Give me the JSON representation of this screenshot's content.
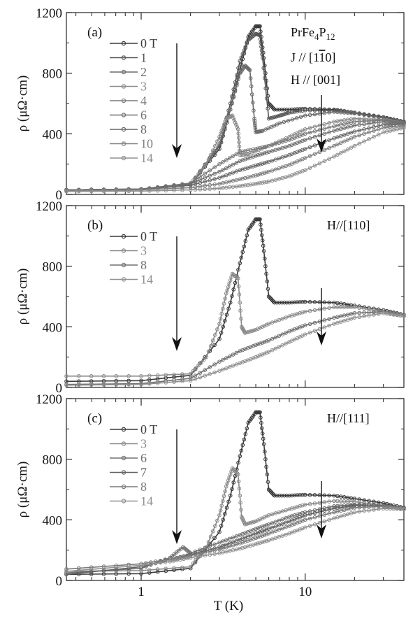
{
  "chart_data": [
    {
      "type": "line",
      "panel_label": "(a)",
      "xscale": "log",
      "xlim": [
        0.35,
        40
      ],
      "ylim": [
        0,
        1200
      ],
      "yticks": [
        0,
        400,
        800,
        1200
      ],
      "xticks": [
        1,
        10
      ],
      "xlabel": "",
      "ylabel": "ρ (μΩ·cm)",
      "annotation": {
        "compound": "PrFe",
        "sub1": "4",
        "mid": "P",
        "sub2": "12",
        "line2": "J // [1",
        "line2_bar": "1",
        "line2_end": "0]",
        "line3": "H // [001]"
      },
      "series": [
        {
          "name": "0 T",
          "color": "#3a3a3a",
          "x": [
            0.35,
            1,
            2,
            3,
            3.5,
            4,
            4.5,
            5,
            5.3,
            5.6,
            6,
            6.5,
            8,
            10,
            15,
            20,
            30,
            40
          ],
          "y": [
            30,
            35,
            65,
            300,
            560,
            820,
            1040,
            1110,
            1110,
            900,
            600,
            560,
            560,
            565,
            560,
            540,
            510,
            480
          ]
        },
        {
          "name": "1",
          "color": "#555555",
          "x": [
            0.35,
            1,
            2,
            3,
            3.5,
            4,
            4.5,
            5,
            5.3,
            5.5,
            6,
            7,
            8,
            10,
            15,
            20,
            30,
            40
          ],
          "y": [
            30,
            35,
            65,
            320,
            600,
            880,
            1020,
            1060,
            1050,
            900,
            500,
            520,
            540,
            555,
            555,
            540,
            505,
            475
          ]
        },
        {
          "name": "2",
          "color": "#6a6a6a",
          "x": [
            0.35,
            1,
            2,
            3,
            3.5,
            4,
            4.3,
            4.6,
            4.9,
            5,
            5.5,
            7,
            10,
            15,
            20,
            30,
            40
          ],
          "y": [
            30,
            35,
            65,
            330,
            560,
            800,
            850,
            820,
            500,
            410,
            420,
            470,
            520,
            545,
            535,
            505,
            475
          ]
        },
        {
          "name": "3",
          "color": "#8a8a8a",
          "x": [
            0.35,
            1,
            2,
            2.5,
            3,
            3.3,
            3.6,
            3.9,
            4,
            4.5,
            6,
            8,
            10,
            15,
            20,
            30,
            40
          ],
          "y": [
            30,
            35,
            70,
            200,
            380,
            500,
            520,
            430,
            260,
            265,
            320,
            380,
            430,
            480,
            500,
            495,
            470
          ]
        },
        {
          "name": "4",
          "color": "#7a7a7a",
          "x": [
            0.35,
            1,
            2,
            3,
            4,
            5,
            6,
            8,
            10,
            15,
            20,
            30,
            40
          ],
          "y": [
            30,
            35,
            75,
            200,
            280,
            300,
            320,
            360,
            400,
            450,
            480,
            490,
            470
          ]
        },
        {
          "name": "6",
          "color": "#707070",
          "x": [
            0.35,
            1,
            2,
            3,
            4,
            5,
            6,
            8,
            10,
            15,
            20,
            30,
            40
          ],
          "y": [
            30,
            35,
            70,
            150,
            220,
            255,
            280,
            320,
            360,
            420,
            455,
            480,
            470
          ]
        },
        {
          "name": "8",
          "color": "#686868",
          "x": [
            0.35,
            1,
            2,
            3,
            4,
            5,
            6,
            8,
            10,
            15,
            20,
            30,
            40
          ],
          "y": [
            28,
            33,
            60,
            110,
            160,
            190,
            215,
            260,
            300,
            370,
            415,
            460,
            460
          ]
        },
        {
          "name": "10",
          "color": "#808080",
          "x": [
            0.35,
            1,
            2,
            3,
            4,
            5,
            6,
            8,
            10,
            15,
            20,
            30,
            40
          ],
          "y": [
            25,
            30,
            45,
            70,
            100,
            125,
            150,
            195,
            240,
            320,
            380,
            440,
            455
          ]
        },
        {
          "name": "14",
          "color": "#909090",
          "x": [
            0.35,
            1,
            2,
            3,
            4,
            5,
            6,
            8,
            10,
            15,
            20,
            30,
            40
          ],
          "y": [
            20,
            22,
            30,
            40,
            55,
            70,
            85,
            120,
            160,
            250,
            320,
            410,
            440
          ]
        }
      ]
    },
    {
      "type": "line",
      "panel_label": "(b)",
      "xscale": "log",
      "xlim": [
        0.35,
        40
      ],
      "ylim": [
        0,
        1200
      ],
      "yticks": [
        0,
        400,
        800,
        1200
      ],
      "xticks": [
        1,
        10
      ],
      "xlabel": "",
      "ylabel": "ρ (μΩ·cm)",
      "annotation": {
        "line1": "H//[110]"
      },
      "series": [
        {
          "name": "0 T",
          "color": "#3a3a3a",
          "x": [
            0.35,
            1,
            2,
            3,
            3.5,
            4,
            4.5,
            5,
            5.3,
            5.6,
            6,
            6.5,
            8,
            10,
            15,
            20,
            30,
            40
          ],
          "y": [
            40,
            45,
            80,
            320,
            560,
            820,
            1040,
            1110,
            1110,
            900,
            600,
            560,
            560,
            565,
            560,
            540,
            510,
            480
          ]
        },
        {
          "name": "3",
          "color": "#8a8a8a",
          "x": [
            0.35,
            1,
            2,
            2.5,
            3,
            3.3,
            3.6,
            3.9,
            4.1,
            4.3,
            5,
            6,
            8,
            10,
            15,
            20,
            30,
            40
          ],
          "y": [
            75,
            75,
            90,
            200,
            420,
            620,
            750,
            720,
            400,
            360,
            380,
            420,
            470,
            500,
            530,
            530,
            500,
            470
          ]
        },
        {
          "name": "8",
          "color": "#707070",
          "x": [
            0.35,
            1,
            2,
            3,
            4,
            5,
            6,
            8,
            10,
            15,
            20,
            30,
            40
          ],
          "y": [
            20,
            25,
            60,
            170,
            240,
            280,
            310,
            370,
            410,
            460,
            490,
            500,
            480
          ]
        },
        {
          "name": "14",
          "color": "#909090",
          "x": [
            0.35,
            1,
            2,
            3,
            4,
            5,
            6,
            8,
            10,
            15,
            20,
            30,
            40
          ],
          "y": [
            15,
            20,
            45,
            110,
            160,
            200,
            235,
            300,
            350,
            420,
            460,
            490,
            470
          ]
        }
      ]
    },
    {
      "type": "line",
      "panel_label": "(c)",
      "xscale": "log",
      "xlim": [
        0.35,
        40
      ],
      "ylim": [
        0,
        1200
      ],
      "yticks": [
        0,
        400,
        800,
        1200
      ],
      "xticks": [
        1,
        10
      ],
      "xlabel": "T (K)",
      "ylabel": "ρ (μΩ·cm)",
      "annotation": {
        "line1": "H//[111]"
      },
      "series": [
        {
          "name": "0 T",
          "color": "#3a3a3a",
          "x": [
            0.35,
            1,
            2,
            3,
            3.5,
            4,
            4.5,
            5,
            5.3,
            5.6,
            6,
            6.5,
            8,
            10,
            15,
            20,
            30,
            40
          ],
          "y": [
            40,
            45,
            80,
            320,
            560,
            820,
            1040,
            1110,
            1110,
            900,
            600,
            560,
            560,
            565,
            560,
            540,
            510,
            480
          ]
        },
        {
          "name": "3",
          "color": "#8a8a8a",
          "x": [
            0.35,
            1,
            2,
            2.5,
            3,
            3.3,
            3.6,
            3.9,
            4.1,
            4.3,
            5,
            6,
            8,
            10,
            15,
            20,
            30,
            40
          ],
          "y": [
            60,
            65,
            90,
            220,
            430,
            620,
            740,
            700,
            420,
            370,
            390,
            430,
            470,
            500,
            525,
            520,
            495,
            470
          ]
        },
        {
          "name": "6",
          "color": "#707070",
          "x": [
            0.35,
            1,
            1.5,
            1.8,
            2,
            3,
            4,
            5,
            6,
            8,
            10,
            15,
            20,
            30,
            40
          ],
          "y": [
            50,
            80,
            150,
            220,
            180,
            250,
            300,
            340,
            370,
            420,
            450,
            490,
            500,
            495,
            475
          ]
        },
        {
          "name": "7",
          "color": "#606060",
          "x": [
            0.35,
            1,
            1.5,
            2,
            3,
            4,
            5,
            6,
            8,
            10,
            15,
            20,
            30,
            40
          ],
          "y": [
            40,
            90,
            140,
            170,
            220,
            270,
            310,
            340,
            390,
            430,
            475,
            495,
            495,
            475
          ]
        },
        {
          "name": "8",
          "color": "#7a7a7a",
          "x": [
            0.35,
            1,
            1.5,
            2,
            3,
            4,
            5,
            6,
            8,
            10,
            15,
            20,
            30,
            40
          ],
          "y": [
            75,
            110,
            140,
            165,
            205,
            245,
            280,
            310,
            360,
            400,
            450,
            480,
            490,
            475
          ]
        },
        {
          "name": "14",
          "color": "#909090",
          "x": [
            0.35,
            1,
            1.5,
            2,
            3,
            4,
            5,
            6,
            8,
            10,
            15,
            20,
            30,
            40
          ],
          "y": [
            60,
            100,
            125,
            150,
            180,
            210,
            240,
            265,
            310,
            350,
            410,
            450,
            475,
            470
          ]
        }
      ]
    }
  ]
}
